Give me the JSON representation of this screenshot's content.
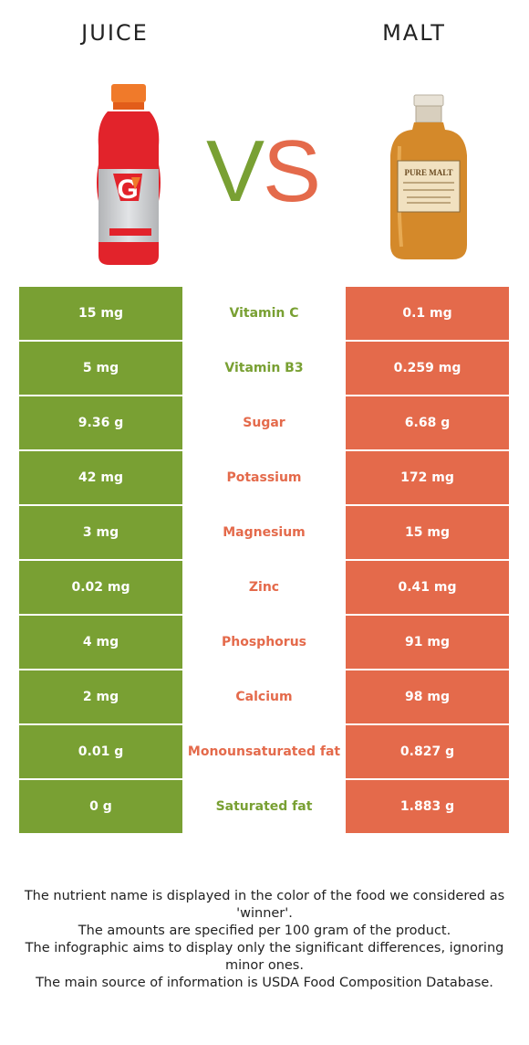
{
  "header": {
    "left_food": "JUICE",
    "right_food": "MALT"
  },
  "vs": {
    "v": "V",
    "s": "S",
    "colors": {
      "v": "#79a033",
      "s": "#e46a4b"
    }
  },
  "images": {
    "left": "sports-drink-bottle",
    "right": "whisky-bottle"
  },
  "bottle_labels": {
    "pure_malt": "PURE MALT"
  },
  "colors": {
    "green": "#79a033",
    "orange": "#e46a4b"
  },
  "rows": [
    {
      "left": "15 mg",
      "nutrient": "Vitamin C",
      "right": "0.1 mg",
      "winner": "green"
    },
    {
      "left": "5 mg",
      "nutrient": "Vitamin B3",
      "right": "0.259 mg",
      "winner": "green"
    },
    {
      "left": "9.36 g",
      "nutrient": "Sugar",
      "right": "6.68 g",
      "winner": "orange"
    },
    {
      "left": "42 mg",
      "nutrient": "Potassium",
      "right": "172 mg",
      "winner": "orange"
    },
    {
      "left": "3 mg",
      "nutrient": "Magnesium",
      "right": "15 mg",
      "winner": "orange"
    },
    {
      "left": "0.02 mg",
      "nutrient": "Zinc",
      "right": "0.41 mg",
      "winner": "orange"
    },
    {
      "left": "4 mg",
      "nutrient": "Phosphorus",
      "right": "91 mg",
      "winner": "orange"
    },
    {
      "left": "2 mg",
      "nutrient": "Calcium",
      "right": "98 mg",
      "winner": "orange"
    },
    {
      "left": "0.01 g",
      "nutrient": "Monounsaturated fat",
      "right": "0.827 g",
      "winner": "orange"
    },
    {
      "left": "0 g",
      "nutrient": "Saturated fat",
      "right": "1.883 g",
      "winner": "green"
    }
  ],
  "footer": {
    "line1": "The nutrient name is displayed in the color of the food we considered as 'winner'.",
    "line2": "The amounts are specified per 100 gram of the product.",
    "line3": "The infographic aims to display only the significant differences, ignoring minor ones.",
    "line4": "The main source of information is USDA Food Composition Database."
  }
}
